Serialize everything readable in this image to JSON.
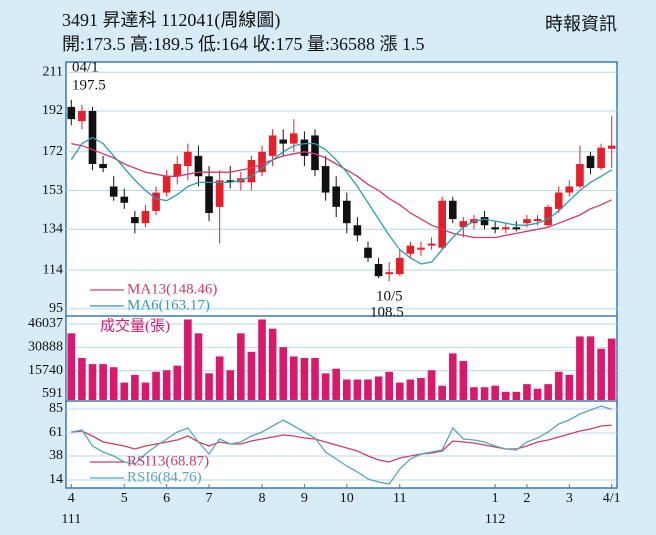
{
  "header": {
    "title": "3491 昇達科 112041(周線圖)",
    "source": "時報資訊",
    "quote": "開:173.5 高:189.5 低:164 收:175 量:36588 漲 1.5"
  },
  "chart_data": [
    {
      "type": "candlestick",
      "categories": [
        "4",
        null,
        null,
        null,
        null,
        "5",
        null,
        null,
        null,
        "6",
        null,
        null,
        null,
        "7",
        null,
        null,
        null,
        null,
        "8",
        null,
        null,
        null,
        "9",
        null,
        null,
        null,
        "10",
        null,
        null,
        null,
        null,
        "11",
        null,
        null,
        null,
        null,
        null,
        null,
        null,
        null,
        "1",
        null,
        null,
        "2",
        null,
        null,
        null,
        "3",
        null,
        null,
        null,
        "4/1"
      ],
      "year_labels": [
        "111",
        null,
        null,
        null,
        null,
        null,
        null,
        null,
        null,
        null,
        null,
        null,
        null,
        null,
        null,
        null,
        null,
        null,
        null,
        null,
        null,
        null,
        null,
        null,
        null,
        null,
        null,
        null,
        null,
        null,
        null,
        null,
        null,
        null,
        null,
        null,
        null,
        null,
        null,
        null,
        "112",
        null,
        null,
        null,
        null,
        null,
        null,
        null,
        null,
        null,
        null,
        null
      ],
      "open": [
        194,
        187,
        192,
        166,
        155,
        150,
        140,
        137,
        143,
        152,
        160,
        165,
        170,
        160,
        145,
        158,
        157,
        157,
        162,
        170,
        178,
        176,
        178,
        180,
        165,
        155,
        148,
        136,
        125,
        117,
        112,
        112,
        122,
        124,
        126,
        125,
        148,
        135,
        137,
        140,
        135,
        134,
        135,
        137,
        138,
        136,
        144,
        152,
        155,
        170,
        164,
        173.5
      ],
      "high": [
        197.5,
        195,
        194,
        170,
        160,
        154,
        143,
        146,
        155,
        163,
        170,
        176,
        175,
        165,
        163,
        165,
        162,
        170,
        175,
        183,
        183,
        188,
        182,
        183,
        170,
        160,
        152,
        140,
        128,
        120,
        118,
        124,
        128,
        128,
        130,
        150,
        150,
        140,
        141,
        143,
        138,
        137,
        138,
        141,
        141,
        146,
        155,
        158,
        175,
        172,
        176,
        189.5
      ],
      "low": [
        185,
        183,
        163,
        162,
        148,
        144,
        132,
        135,
        141,
        150,
        156,
        158,
        155,
        138,
        127,
        154,
        153,
        153,
        160,
        165,
        170,
        172,
        165,
        160,
        148,
        140,
        132,
        128,
        118,
        110,
        108.5,
        111,
        120,
        121,
        124,
        124,
        137,
        130,
        134,
        134,
        132,
        132,
        133,
        135,
        136,
        135,
        142,
        150,
        154,
        161,
        163,
        164
      ],
      "close": [
        188,
        192,
        166,
        164,
        150,
        147,
        137,
        143,
        152,
        160,
        166,
        172,
        160,
        142,
        158,
        157,
        159,
        168,
        172,
        180,
        176,
        181,
        170,
        163,
        152,
        145,
        137,
        131,
        120,
        111,
        113,
        120,
        126,
        125,
        127,
        148,
        139,
        138,
        139,
        136,
        134,
        135,
        134,
        139,
        139,
        145,
        152,
        155,
        166,
        164,
        174,
        175
      ],
      "up_color": "#e3202a",
      "down_color": "#111111",
      "series": [
        {
          "name": "MA13(148.46)",
          "color": "#cf3a72",
          "values": [
            176,
            175,
            173,
            171,
            169,
            166,
            164,
            162,
            161,
            160,
            160,
            161,
            162,
            162,
            162,
            162,
            163,
            164,
            166,
            168,
            170,
            171,
            172,
            171,
            169,
            166,
            163,
            160,
            156,
            153,
            149,
            146,
            142,
            139,
            136,
            134,
            132,
            131,
            130,
            130,
            130,
            131,
            132,
            133,
            134,
            135,
            137,
            139,
            141,
            144,
            146,
            148.46
          ]
        },
        {
          "name": "MA6(163.17)",
          "color": "#2f9bb0",
          "values": [
            168,
            176,
            179,
            176,
            170,
            164,
            158,
            153,
            149,
            148,
            151,
            155,
            157,
            157,
            157,
            157,
            158,
            160,
            164,
            168,
            172,
            175,
            176,
            176,
            173,
            168,
            162,
            155,
            147,
            139,
            131,
            124,
            120,
            117,
            118,
            124,
            130,
            135,
            138,
            139,
            138,
            137,
            136,
            136,
            137,
            139,
            143,
            148,
            153,
            157,
            160,
            163.17
          ]
        }
      ],
      "annotations": [
        "04/1",
        "197.5",
        "10/5",
        "108.5"
      ],
      "ylim": [
        92,
        216
      ],
      "yticks": [
        95,
        114,
        134,
        153,
        172,
        192,
        211
      ],
      "grid": true
    },
    {
      "type": "bar",
      "name": "成交量(張)",
      "color": "#d81a6c",
      "values": [
        40000,
        24000,
        20000,
        20000,
        18000,
        8000,
        13000,
        8000,
        15000,
        16000,
        19000,
        49000,
        40000,
        14000,
        25000,
        16000,
        40000,
        28000,
        49000,
        43000,
        31000,
        25000,
        24000,
        24000,
        14000,
        17000,
        10000,
        10000,
        10000,
        12000,
        15000,
        8000,
        10000,
        11000,
        16000,
        6000,
        27000,
        22000,
        5000,
        5000,
        6000,
        2000,
        2000,
        7000,
        4000,
        7000,
        15000,
        13000,
        38000,
        38000,
        30000,
        36588
      ],
      "ylim": [
        -3300,
        50600
      ],
      "yticks": [
        591,
        15740,
        30888,
        46037
      ],
      "grid": true
    },
    {
      "type": "line",
      "series": [
        {
          "name": "RSI13(68.87)",
          "color": "#c8406a",
          "values": [
            62,
            63,
            58,
            52,
            50,
            48,
            45,
            48,
            50,
            52,
            54,
            58,
            52,
            48,
            52,
            50,
            50,
            53,
            55,
            57,
            59,
            58,
            56,
            55,
            52,
            49,
            46,
            43,
            38,
            34,
            32,
            36,
            38,
            40,
            41,
            43,
            53,
            52,
            51,
            49,
            47,
            45,
            45,
            48,
            52,
            54,
            57,
            60,
            63,
            65,
            68,
            68.87
          ]
        },
        {
          "name": "RSI6(84.76)",
          "color": "#5aa6b8",
          "values": [
            62,
            64,
            48,
            42,
            38,
            32,
            30,
            40,
            48,
            55,
            62,
            66,
            52,
            40,
            55,
            50,
            52,
            58,
            62,
            68,
            74,
            68,
            62,
            56,
            42,
            35,
            28,
            22,
            15,
            12,
            10,
            25,
            35,
            40,
            42,
            44,
            66,
            55,
            54,
            52,
            48,
            45,
            44,
            52,
            56,
            62,
            70,
            74,
            80,
            84,
            88,
            84.76
          ]
        }
      ],
      "ylim": [
        6,
        92
      ],
      "yticks": [
        14,
        38,
        61,
        85
      ],
      "grid": true
    }
  ]
}
